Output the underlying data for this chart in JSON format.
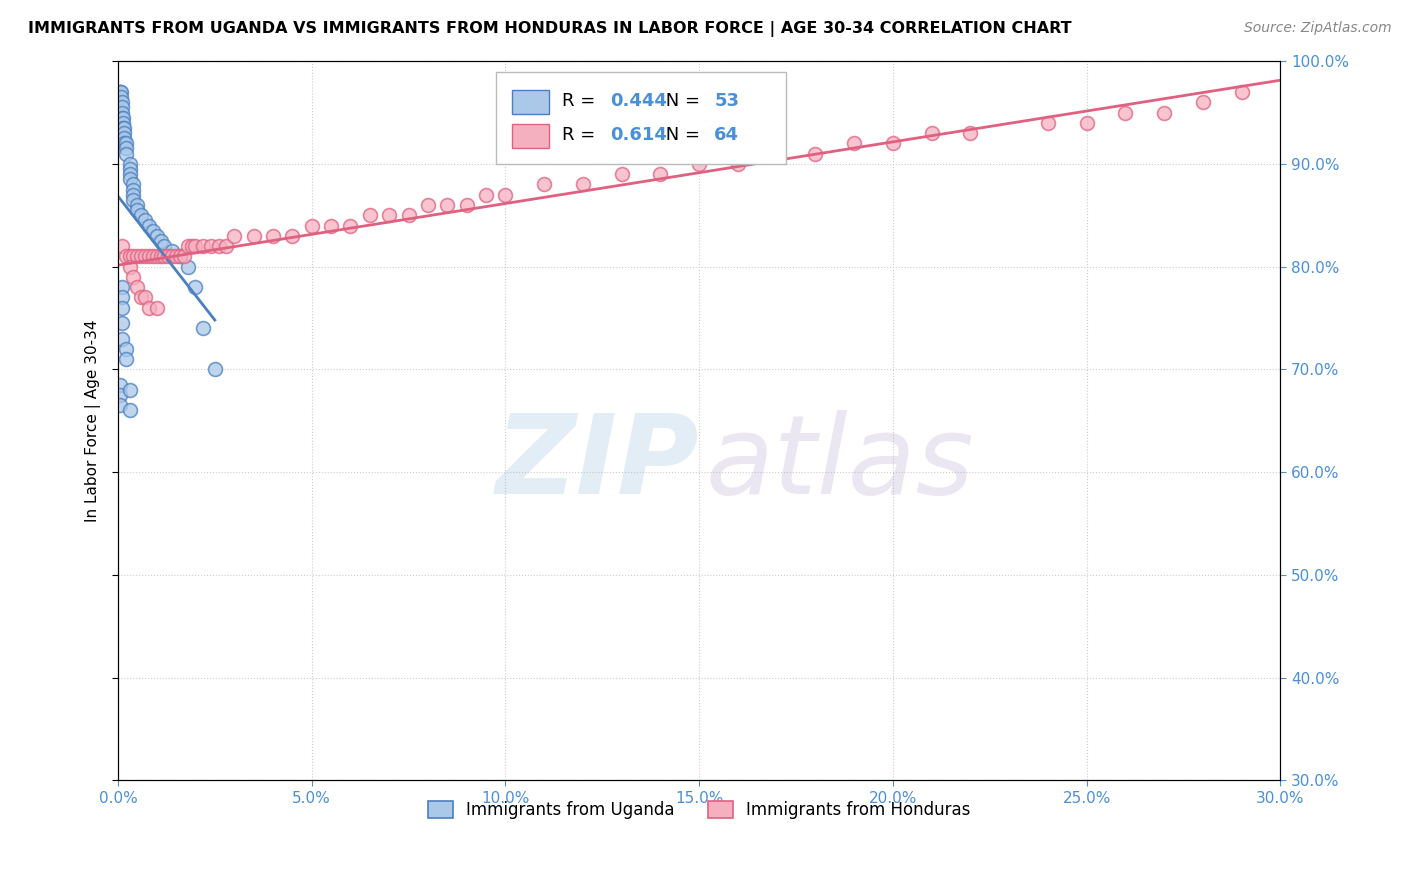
{
  "title": "IMMIGRANTS FROM UGANDA VS IMMIGRANTS FROM HONDURAS IN LABOR FORCE | AGE 30-34 CORRELATION CHART",
  "source": "Source: ZipAtlas.com",
  "ylabel_label": "In Labor Force | Age 30-34",
  "legend_uganda": "Immigrants from Uganda",
  "legend_honduras": "Immigrants from Honduras",
  "R_uganda": 0.444,
  "N_uganda": 53,
  "R_honduras": 0.614,
  "N_honduras": 64,
  "uganda_color": "#aac8e8",
  "honduras_color": "#f5b0c0",
  "uganda_line_color": "#4a7fc0",
  "honduras_line_color": "#e06080",
  "xlim": [
    0.0,
    0.3
  ],
  "ylim": [
    0.3,
    1.0
  ],
  "uganda_x": [
    0.0005,
    0.0005,
    0.0008,
    0.0008,
    0.001,
    0.001,
    0.001,
    0.001,
    0.0012,
    0.0012,
    0.0012,
    0.0015,
    0.0015,
    0.0015,
    0.0015,
    0.002,
    0.002,
    0.002,
    0.003,
    0.003,
    0.003,
    0.003,
    0.004,
    0.004,
    0.004,
    0.004,
    0.005,
    0.005,
    0.006,
    0.007,
    0.008,
    0.009,
    0.01,
    0.011,
    0.012,
    0.014,
    0.016,
    0.018,
    0.02,
    0.022,
    0.025,
    0.0005,
    0.0005,
    0.0005,
    0.001,
    0.001,
    0.001,
    0.001,
    0.001,
    0.002,
    0.002,
    0.003,
    0.003
  ],
  "uganda_y": [
    0.97,
    0.97,
    0.97,
    0.965,
    0.96,
    0.955,
    0.95,
    0.945,
    0.945,
    0.94,
    0.935,
    0.935,
    0.93,
    0.925,
    0.92,
    0.92,
    0.915,
    0.91,
    0.9,
    0.895,
    0.89,
    0.885,
    0.88,
    0.875,
    0.87,
    0.865,
    0.86,
    0.855,
    0.85,
    0.845,
    0.84,
    0.835,
    0.83,
    0.825,
    0.82,
    0.815,
    0.81,
    0.8,
    0.78,
    0.74,
    0.7,
    0.685,
    0.675,
    0.665,
    0.78,
    0.77,
    0.76,
    0.745,
    0.73,
    0.72,
    0.71,
    0.68,
    0.66
  ],
  "honduras_x": [
    0.001,
    0.002,
    0.003,
    0.004,
    0.005,
    0.006,
    0.007,
    0.008,
    0.009,
    0.01,
    0.011,
    0.012,
    0.013,
    0.014,
    0.015,
    0.016,
    0.017,
    0.018,
    0.019,
    0.02,
    0.022,
    0.024,
    0.026,
    0.028,
    0.03,
    0.035,
    0.04,
    0.045,
    0.05,
    0.055,
    0.06,
    0.065,
    0.07,
    0.075,
    0.08,
    0.085,
    0.09,
    0.095,
    0.1,
    0.11,
    0.12,
    0.13,
    0.14,
    0.15,
    0.16,
    0.17,
    0.18,
    0.19,
    0.2,
    0.21,
    0.22,
    0.24,
    0.25,
    0.26,
    0.27,
    0.28,
    0.29,
    0.003,
    0.004,
    0.005,
    0.006,
    0.007,
    0.008,
    0.01
  ],
  "honduras_y": [
    0.82,
    0.81,
    0.81,
    0.81,
    0.81,
    0.81,
    0.81,
    0.81,
    0.81,
    0.81,
    0.81,
    0.81,
    0.81,
    0.81,
    0.81,
    0.81,
    0.81,
    0.82,
    0.82,
    0.82,
    0.82,
    0.82,
    0.82,
    0.82,
    0.83,
    0.83,
    0.83,
    0.83,
    0.84,
    0.84,
    0.84,
    0.85,
    0.85,
    0.85,
    0.86,
    0.86,
    0.86,
    0.87,
    0.87,
    0.88,
    0.88,
    0.89,
    0.89,
    0.9,
    0.9,
    0.91,
    0.91,
    0.92,
    0.92,
    0.93,
    0.93,
    0.94,
    0.94,
    0.95,
    0.95,
    0.96,
    0.97,
    0.8,
    0.79,
    0.78,
    0.77,
    0.77,
    0.76,
    0.76
  ]
}
